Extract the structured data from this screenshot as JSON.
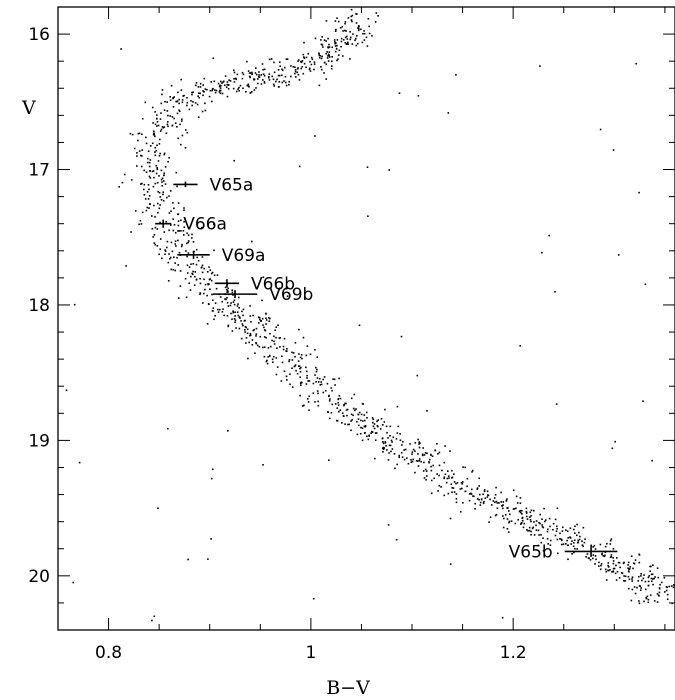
{
  "chart_data": {
    "type": "scatter",
    "xlabel": "B−V",
    "ylabel": "V",
    "xlim": [
      0.75,
      1.36
    ],
    "ylim": [
      15.8,
      20.4
    ],
    "y_inverted": true,
    "grid": false,
    "x_ticks": [
      0.8,
      1,
      1.2
    ],
    "x_tick_labels": [
      "0.8",
      "1",
      "1.2"
    ],
    "y_ticks": [
      16,
      17,
      18,
      19,
      20
    ],
    "y_tick_labels": [
      "16",
      "17",
      "18",
      "19",
      "20"
    ],
    "field_stars_note": "color-magnitude diagram: dense main-sequence / turnoff ridge of small dots plus scattered field points",
    "ridge_line": [
      {
        "bv": 1.05,
        "v": 15.85
      },
      {
        "bv": 1.02,
        "v": 16.15
      },
      {
        "bv": 0.96,
        "v": 16.3
      },
      {
        "bv": 0.9,
        "v": 16.4
      },
      {
        "bv": 0.86,
        "v": 16.55
      },
      {
        "bv": 0.845,
        "v": 16.75
      },
      {
        "bv": 0.84,
        "v": 16.95
      },
      {
        "bv": 0.845,
        "v": 17.15
      },
      {
        "bv": 0.855,
        "v": 17.35
      },
      {
        "bv": 0.87,
        "v": 17.6
      },
      {
        "bv": 0.89,
        "v": 17.8
      },
      {
        "bv": 0.92,
        "v": 18.0
      },
      {
        "bv": 0.95,
        "v": 18.2
      },
      {
        "bv": 0.985,
        "v": 18.45
      },
      {
        "bv": 1.02,
        "v": 18.7
      },
      {
        "bv": 1.06,
        "v": 18.9
      },
      {
        "bv": 1.1,
        "v": 19.1
      },
      {
        "bv": 1.14,
        "v": 19.3
      },
      {
        "bv": 1.18,
        "v": 19.45
      },
      {
        "bv": 1.22,
        "v": 19.6
      },
      {
        "bv": 1.26,
        "v": 19.75
      },
      {
        "bv": 1.3,
        "v": 19.9
      },
      {
        "bv": 1.33,
        "v": 20.05
      },
      {
        "bv": 1.36,
        "v": 20.2
      }
    ],
    "variable_stars": [
      {
        "label": "V65a",
        "bv": 0.876,
        "v": 17.11,
        "bv_err": 0.012,
        "v_err": 0.02,
        "label_side": "right"
      },
      {
        "label": "V66a",
        "bv": 0.854,
        "v": 17.4,
        "bv_err": 0.008,
        "v_err": 0.03,
        "label_side": "right"
      },
      {
        "label": "V69a",
        "bv": 0.884,
        "v": 17.63,
        "bv_err": 0.016,
        "v_err": 0.03,
        "label_side": "right"
      },
      {
        "label": "V66b",
        "bv": 0.917,
        "v": 17.84,
        "bv_err": 0.012,
        "v_err": 0.03,
        "label_side": "right"
      },
      {
        "label": "V69b",
        "bv": 0.925,
        "v": 17.92,
        "bv_err": 0.022,
        "v_err": 0.03,
        "label_side": "right"
      },
      {
        "label": "V65b",
        "bv": 1.277,
        "v": 19.82,
        "bv_err": 0.026,
        "v_err": 0.04,
        "label_side": "left"
      }
    ]
  }
}
